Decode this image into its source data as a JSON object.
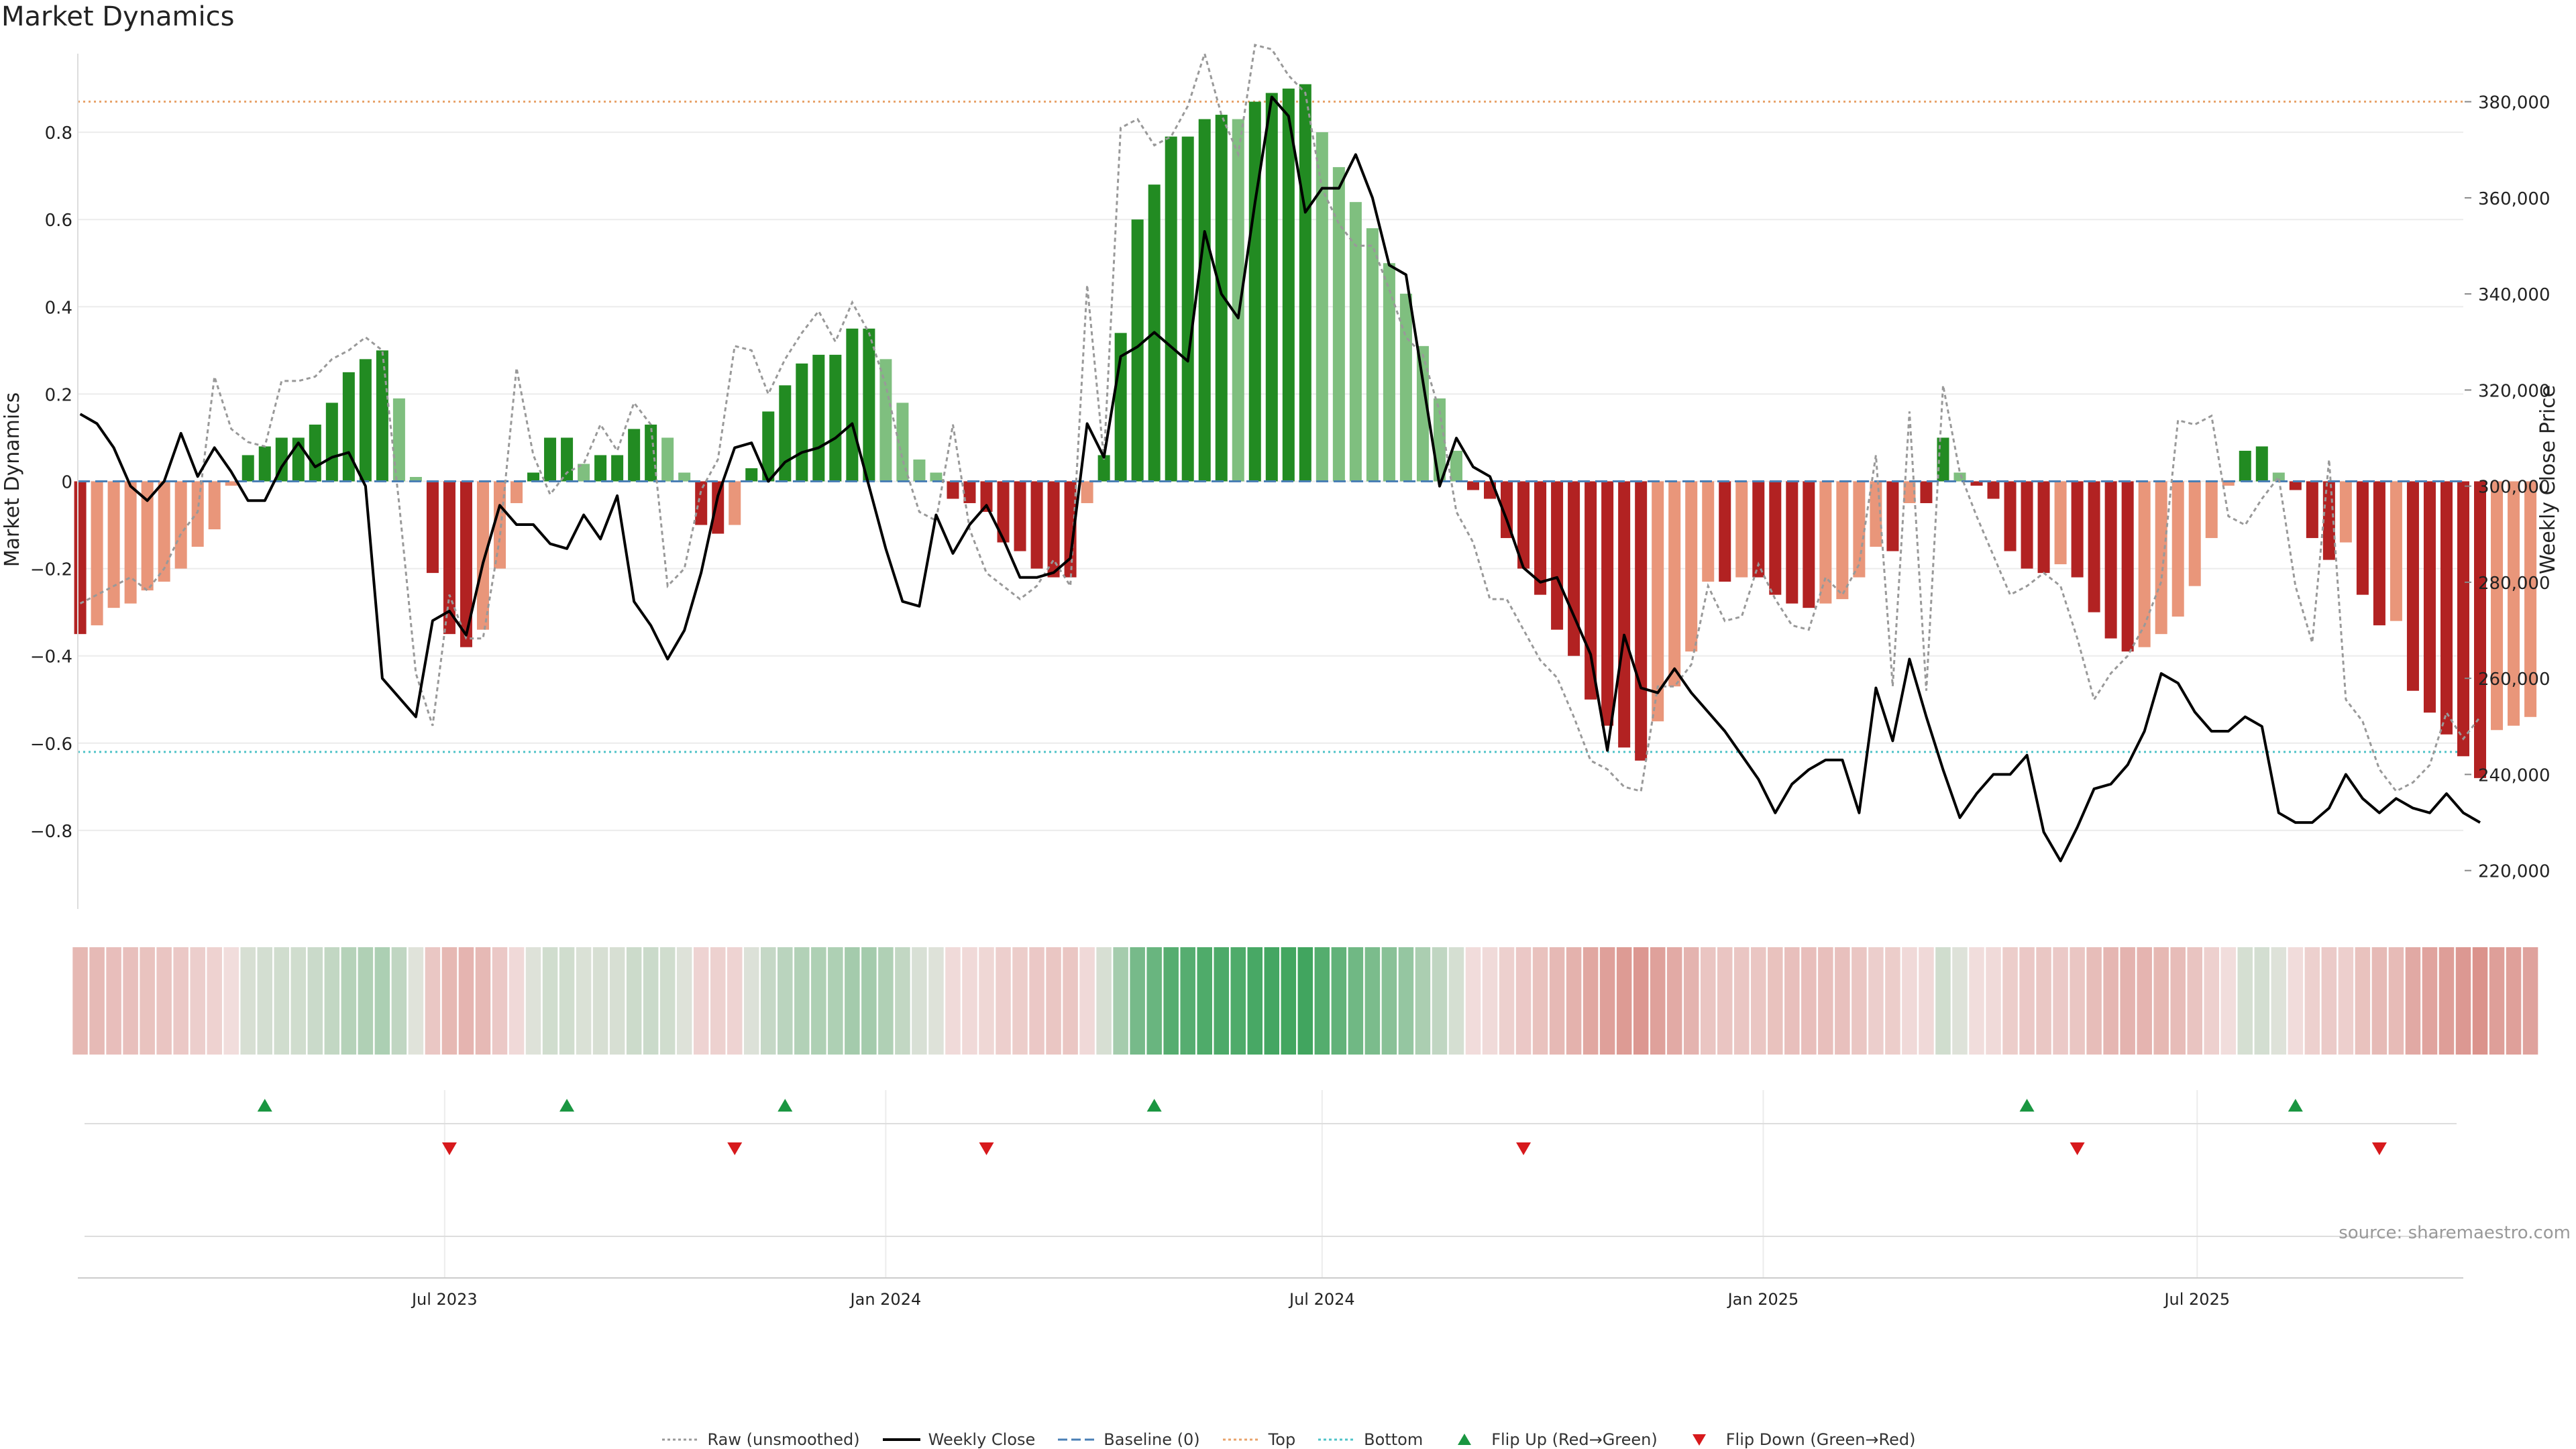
{
  "title": "Market Dynamics",
  "source": "source: sharemaestro.com",
  "legend": [
    {
      "key": "raw",
      "label": "Raw (unsmoothed)",
      "color": "#999999",
      "icon": "dotted-line-icon"
    },
    {
      "key": "close",
      "label": "Weekly Close",
      "color": "#000000",
      "icon": "solid-line-icon"
    },
    {
      "key": "baseline",
      "label": "Baseline (0)",
      "color": "#4a7fb5",
      "icon": "dashed-line-icon"
    },
    {
      "key": "top",
      "label": "Top",
      "color": "#e8a36b",
      "icon": "dotted-line-icon"
    },
    {
      "key": "bottom",
      "label": "Bottom",
      "color": "#4fc3c8",
      "icon": "dotted-line-icon"
    },
    {
      "key": "flip_up",
      "label": "Flip Up (Red→Green)",
      "color": "#1a9641",
      "icon": "triangle-up-icon"
    },
    {
      "key": "flip_down",
      "label": "Flip Down (Green→Red)",
      "color": "#d7191c",
      "icon": "triangle-down-icon"
    }
  ],
  "colors": {
    "green_dark": "#228b22",
    "green_light": "#7fbf7f",
    "red_dark": "#b22222",
    "red_light": "#e9967a",
    "raw": "#999999",
    "close": "#000000",
    "baseline": "#4a7fb5",
    "top": "#e8a36b",
    "bottom": "#4fc3c8",
    "flip_up": "#1a9641",
    "flip_down": "#d7191c"
  },
  "chart_data": {
    "type": "bar",
    "ylabel": "Market Dynamics",
    "y2label": "Weekly Close Price",
    "ylim": [
      -0.98,
      0.98
    ],
    "y2lim": [
      212000,
      390000
    ],
    "yticks": [
      -0.8,
      -0.6,
      -0.4,
      -0.2,
      0,
      0.2,
      0.4,
      0.6,
      0.8
    ],
    "ytick_labels": [
      "−0.8",
      "−0.6",
      "−0.4",
      "−0.2",
      "0",
      "0.2",
      "0.4",
      "0.6",
      "0.8"
    ],
    "y2ticks": [
      220000,
      240000,
      260000,
      280000,
      300000,
      320000,
      340000,
      360000,
      380000
    ],
    "y2tick_labels": [
      "220,000",
      "240,000",
      "260,000",
      "280,000",
      "300,000",
      "320,000",
      "340,000",
      "360,000",
      "380,000"
    ],
    "xlim": [
      "2023-01-29",
      "2025-10-20"
    ],
    "xtick_dates": [
      "2023-07-01",
      "2024-01-01",
      "2024-07-01",
      "2025-01-01",
      "2025-07-01"
    ],
    "xtick_labels": [
      "Jul 2023",
      "Jan 2024",
      "Jul 2024",
      "Jan 2025",
      "Jul 2025"
    ],
    "top_level": 0.87,
    "bottom_level": -0.62,
    "start_date": "2023-01-30",
    "week_step_days": 7,
    "dynamics": [
      -0.35,
      -0.33,
      -0.29,
      -0.28,
      -0.25,
      -0.23,
      -0.2,
      -0.15,
      -0.11,
      -0.01,
      0.06,
      0.08,
      0.1,
      0.1,
      0.13,
      0.18,
      0.25,
      0.28,
      0.3,
      0.19,
      0.01,
      -0.21,
      -0.35,
      -0.38,
      -0.34,
      -0.2,
      -0.05,
      0.02,
      0.1,
      0.1,
      0.04,
      0.06,
      0.06,
      0.12,
      0.13,
      0.1,
      0.02,
      -0.1,
      -0.12,
      -0.1,
      0.03,
      0.16,
      0.22,
      0.27,
      0.29,
      0.29,
      0.35,
      0.35,
      0.28,
      0.18,
      0.05,
      0.02,
      -0.04,
      -0.05,
      -0.07,
      -0.14,
      -0.16,
      -0.2,
      -0.22,
      -0.22,
      -0.05,
      0.06,
      0.34,
      0.6,
      0.68,
      0.79,
      0.79,
      0.83,
      0.84,
      0.83,
      0.87,
      0.89,
      0.9,
      0.91,
      0.8,
      0.72,
      0.64,
      0.58,
      0.5,
      0.43,
      0.31,
      0.19,
      0.07,
      -0.02,
      -0.04,
      -0.13,
      -0.2,
      -0.26,
      -0.34,
      -0.4,
      -0.5,
      -0.56,
      -0.61,
      -0.64,
      -0.55,
      -0.47,
      -0.39,
      -0.23,
      -0.23,
      -0.22,
      -0.22,
      -0.26,
      -0.28,
      -0.29,
      -0.28,
      -0.27,
      -0.22,
      -0.15,
      -0.16,
      -0.05,
      -0.05,
      0.1,
      0.02,
      -0.01,
      -0.04,
      -0.16,
      -0.2,
      -0.21,
      -0.19,
      -0.22,
      -0.3,
      -0.36,
      -0.39,
      -0.38,
      -0.35,
      -0.31,
      -0.24,
      -0.13,
      -0.01,
      0.07,
      0.08,
      0.02,
      -0.02,
      -0.13,
      -0.18,
      -0.14,
      -0.26,
      -0.33,
      -0.32,
      -0.48,
      -0.53,
      -0.58,
      -0.63,
      -0.68,
      -0.57,
      -0.56,
      -0.54
    ],
    "raw": [
      -0.28,
      -0.26,
      -0.24,
      -0.22,
      -0.25,
      -0.2,
      -0.12,
      -0.07,
      0.24,
      0.12,
      0.09,
      0.08,
      0.23,
      0.23,
      0.24,
      0.28,
      0.3,
      0.33,
      0.3,
      -0.05,
      -0.44,
      -0.56,
      -0.26,
      -0.36,
      -0.36,
      -0.13,
      0.26,
      0.06,
      -0.03,
      0.02,
      0.04,
      0.13,
      0.07,
      0.18,
      0.13,
      -0.24,
      -0.2,
      -0.02,
      0.05,
      0.31,
      0.3,
      0.2,
      0.28,
      0.34,
      0.39,
      0.32,
      0.41,
      0.34,
      0.22,
      0.05,
      -0.07,
      -0.09,
      0.13,
      -0.11,
      -0.21,
      -0.24,
      -0.27,
      -0.24,
      -0.18,
      -0.24,
      0.45,
      0.05,
      0.81,
      0.83,
      0.77,
      0.79,
      0.86,
      0.98,
      0.84,
      0.75,
      1.0,
      0.99,
      0.93,
      0.89,
      0.67,
      0.59,
      0.54,
      0.54,
      0.44,
      0.33,
      0.29,
      0.16,
      -0.07,
      -0.14,
      -0.27,
      -0.27,
      -0.34,
      -0.41,
      -0.45,
      -0.54,
      -0.64,
      -0.66,
      -0.7,
      -0.71,
      -0.47,
      -0.47,
      -0.42,
      -0.24,
      -0.32,
      -0.31,
      -0.19,
      -0.27,
      -0.33,
      -0.34,
      -0.22,
      -0.26,
      -0.19,
      0.06,
      -0.47,
      0.16,
      -0.48,
      0.22,
      0.02,
      -0.08,
      -0.17,
      -0.26,
      -0.24,
      -0.21,
      -0.24,
      -0.36,
      -0.5,
      -0.44,
      -0.4,
      -0.33,
      -0.23,
      0.14,
      0.13,
      0.15,
      -0.08,
      -0.1,
      -0.04,
      0.01,
      -0.24,
      -0.37,
      0.05,
      -0.5,
      -0.55,
      -0.66,
      -0.71,
      -0.69,
      -0.65,
      -0.53,
      -0.59,
      -0.54
    ],
    "close": [
      315000,
      313000,
      308000,
      300000,
      297000,
      301000,
      311000,
      302000,
      308000,
      303000,
      297000,
      297000,
      304000,
      309000,
      304000,
      306000,
      307000,
      300000,
      260000,
      256000,
      252000,
      272000,
      274000,
      269000,
      284000,
      296000,
      292000,
      292000,
      288000,
      287000,
      294000,
      289000,
      298000,
      276000,
      271000,
      264000,
      270000,
      282000,
      298000,
      308000,
      309000,
      301000,
      305000,
      307000,
      308000,
      310000,
      313000,
      300000,
      287000,
      276000,
      275000,
      294000,
      286000,
      292000,
      296000,
      289000,
      281000,
      281000,
      282000,
      285000,
      313000,
      306000,
      327000,
      329000,
      332000,
      329000,
      326000,
      353000,
      340000,
      335000,
      359000,
      381000,
      377000,
      357000,
      362000,
      362000,
      369000,
      360000,
      346000,
      344000,
      322000,
      300000,
      310000,
      304000,
      302000,
      293000,
      283000,
      280000,
      281000,
      273000,
      265000,
      245000,
      269000,
      258000,
      257000,
      262000,
      257000,
      253000,
      249000,
      244000,
      239000,
      232000,
      238000,
      241000,
      243000,
      243000,
      232000,
      258000,
      247000,
      264000,
      252000,
      241000,
      231000,
      236000,
      240000,
      240000,
      244000,
      228000,
      222000,
      229000,
      237000,
      238000,
      242000,
      249000,
      261000,
      259000,
      253000,
      249000,
      249000,
      252000,
      250000,
      232000,
      230000,
      230000,
      233000,
      240000,
      235000,
      232000,
      235000,
      233000,
      232000,
      236000,
      232000,
      230000
    ],
    "flip_up_dates": [
      "2023-04-17",
      "2023-08-21",
      "2023-11-20",
      "2024-04-22",
      "2025-04-21",
      "2025-08-11"
    ],
    "flip_down_dates": [
      "2023-07-03",
      "2023-10-30",
      "2024-02-12",
      "2024-09-23",
      "2025-05-12",
      "2025-09-15"
    ]
  }
}
